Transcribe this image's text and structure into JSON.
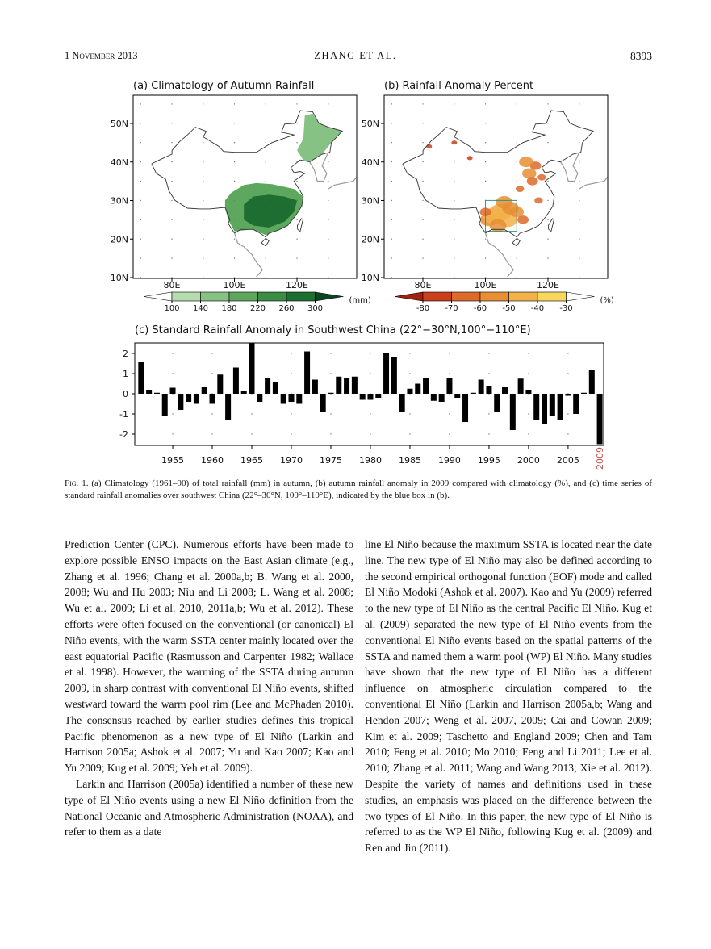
{
  "header": {
    "date": "1 November 2013",
    "authors": "ZHANG ET AL.",
    "page": "8393"
  },
  "figure": {
    "maps": [
      {
        "title": "(a) Climatology of Autumn Rainfall",
        "lat_labels": [
          "50N",
          "40N",
          "30N",
          "20N",
          "10N"
        ],
        "lon_labels": [
          "80E",
          "100E",
          "120E"
        ],
        "colorbar": {
          "ticks": [
            100,
            140,
            180,
            220,
            260,
            300
          ],
          "colors": [
            "#ffffff",
            "#b5dcae",
            "#86c283",
            "#5da85e",
            "#3a8d42",
            "#1f6e31",
            "#0d4420"
          ],
          "unit": "(mm)"
        }
      },
      {
        "title": "(b) Rainfall Anomaly Percent",
        "lat_labels": [
          "50N",
          "40N",
          "30N",
          "20N",
          "10N"
        ],
        "lon_labels": [
          "80E",
          "100E",
          "120E"
        ],
        "colorbar": {
          "ticks": [
            -80,
            -70,
            -60,
            -50,
            -40,
            -30
          ],
          "colors": [
            "#a5200c",
            "#c9401a",
            "#dc6a2a",
            "#e88e35",
            "#f1b249",
            "#f8d85c",
            "#ffffff"
          ],
          "unit": "(%)"
        }
      }
    ],
    "chart_data": {
      "type": "bar",
      "title": "(c) Standard Rainfall Anomaly in Southwest China (22°−30°N,100°−110°E)",
      "x": [
        1951,
        1952,
        1953,
        1954,
        1955,
        1956,
        1957,
        1958,
        1959,
        1960,
        1961,
        1962,
        1963,
        1964,
        1965,
        1966,
        1967,
        1968,
        1969,
        1970,
        1971,
        1972,
        1973,
        1974,
        1975,
        1976,
        1977,
        1978,
        1979,
        1980,
        1981,
        1982,
        1983,
        1984,
        1985,
        1986,
        1987,
        1988,
        1989,
        1990,
        1991,
        1992,
        1993,
        1994,
        1995,
        1996,
        1997,
        1998,
        1999,
        2000,
        2001,
        2002,
        2003,
        2004,
        2005,
        2006,
        2007,
        2008,
        2009
      ],
      "values": [
        1.6,
        0.2,
        0.05,
        -1.1,
        0.3,
        -0.8,
        -0.4,
        -0.5,
        0.35,
        -0.5,
        0.95,
        -1.3,
        1.3,
        0.15,
        2.5,
        -0.4,
        0.8,
        0.6,
        -0.5,
        -0.4,
        -0.5,
        2.1,
        0.7,
        -0.9,
        0.05,
        0.85,
        0.8,
        0.85,
        -0.3,
        -0.3,
        -0.2,
        2.0,
        1.8,
        -0.9,
        0.25,
        0.5,
        0.8,
        -0.35,
        -0.4,
        0.8,
        -0.2,
        -1.4,
        0.05,
        0.7,
        0.4,
        -0.9,
        0.35,
        -1.8,
        0.75,
        0.2,
        -1.3,
        -1.5,
        -1.1,
        -1.3,
        -0.1,
        -1.0,
        0.05,
        1.2,
        -2.5
      ],
      "color": "#000000",
      "xlim": [
        1950.2,
        2009.5
      ],
      "ylim": [
        -2.56,
        2.52
      ],
      "xticks": [
        1955,
        1960,
        1965,
        1970,
        1975,
        1980,
        1985,
        1990,
        1995,
        2000,
        2005
      ],
      "yticks": [
        -2,
        -1,
        0,
        1,
        2
      ],
      "annotation": {
        "text": "2009",
        "color": "#c0504d"
      }
    },
    "caption_label": "Fig. 1.",
    "caption": "(a) Climatology (1961–90) of total rainfall (mm) in autumn, (b) autumn rainfall anomaly in 2009 compared with climatology (%), and (c) time series of standard rainfall anomalies over southwest China (22°–30°N, 100°–110°E), indicated by the blue box in (b)."
  },
  "body": {
    "left": [
      "Prediction Center (CPC). Numerous efforts have been made to explore possible ENSO impacts on the East Asian climate (e.g., Zhang et al. 1996; Chang et al. 2000a,b; B. Wang et al. 2000, 2008; Wu and Hu 2003; Niu and Li 2008; L. Wang et al. 2008; Wu et al. 2009; Li et al. 2010, 2011a,b; Wu et al. 2012). These efforts were often focused on the conventional (or canonical) El Niño events, with the warm SSTA center mainly located over the east equatorial Pacific (Rasmusson and Carpenter 1982; Wallace et al. 1998). However, the warming of the SSTA during autumn 2009, in sharp contrast with conventional El Niño events, shifted westward toward the warm pool rim (Lee and McPhaden 2010). The consensus reached by earlier studies defines this tropical Pacific phenomenon as a new type of El Niño (Larkin and Harrison 2005a; Ashok et al. 2007; Yu and Kao 2007; Kao and Yu 2009; Kug et al. 2009; Yeh et al. 2009).",
      "Larkin and Harrison (2005a) identified a number of these new type of El Niño events using a new El Niño definition from the National Oceanic and Atmospheric Administration (NOAA), and refer to them as a date"
    ],
    "right": [
      "line El Niño because the maximum SSTA is located near the date line. The new type of El Niño may also be defined according to the second empirical orthogonal function (EOF) mode and called El Niño Modoki (Ashok et al. 2007). Kao and Yu (2009) referred to the new type of El Niño as the central Pacific El Niño. Kug et al. (2009) separated the new type of El Niño events from the conventional El Niño events based on the spatial patterns of the SSTA and named them a warm pool (WP) El Niño. Many studies have shown that the new type of El Niño has a different influence on atmospheric circulation compared to the conventional El Niño (Larkin and Harrison 2005a,b; Wang and Hendon 2007; Weng et al. 2007, 2009; Cai and Cowan 2009; Kim et al. 2009; Taschetto and England 2009; Chen and Tam 2010; Feng et al. 2010; Mo 2010; Feng and Li 2011; Lee et al. 2010; Zhang et al. 2011; Wang and Wang 2013; Xie et al. 2012). Despite the variety of names and definitions used in these studies, an emphasis was placed on the difference between the two types of El Niño. In this paper, the new type of El Niño is referred to as the WP El Niño, following Kug et al. (2009) and Ren and Jin (2011)."
    ]
  }
}
